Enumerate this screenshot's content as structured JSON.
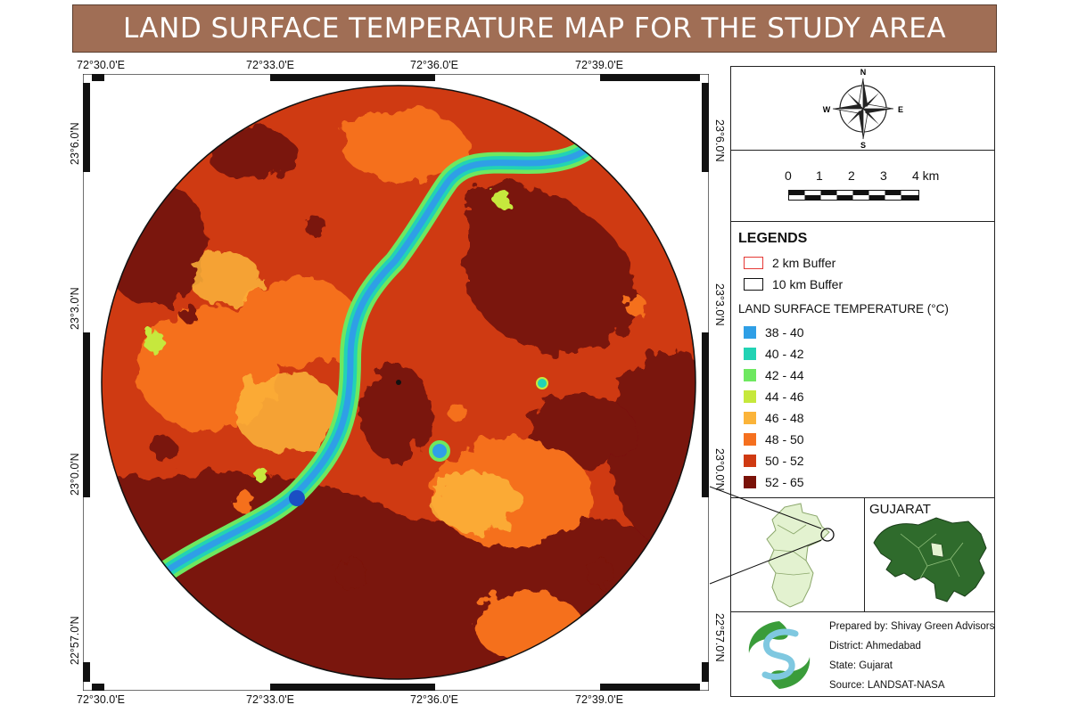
{
  "title": "LAND SURFACE TEMPERATURE MAP FOR THE STUDY AREA",
  "grid": {
    "top_labels": [
      "72°30.0'E",
      "72°33.0'E",
      "72°36.0'E",
      "72°39.0'E"
    ],
    "bottom_labels": [
      "72°30.0'E",
      "72°33.0'E",
      "72°36.0'E",
      "72°39.0'E"
    ],
    "left_labels": [
      "23°6.0'N",
      "23°3.0'N",
      "23°0.0'N",
      "22°57.0'N"
    ],
    "right_labels": [
      "23°6.0'N",
      "23°3.0'N",
      "23°0.0'N",
      "22°57.0'N"
    ]
  },
  "north_arrow": {
    "n": "N",
    "s": "S",
    "e": "E",
    "w": "W"
  },
  "scalebar": {
    "labels": [
      "0",
      "1",
      "2",
      "3",
      "4 km"
    ]
  },
  "legend": {
    "heading": "LEGENDS",
    "buffers": [
      {
        "label": "2 km Buffer",
        "color": "#e53935"
      },
      {
        "label": "10 km Buffer",
        "color": "#111111"
      }
    ],
    "lst_heading": "LAND SURFACE TEMPERATURE (°C)",
    "classes": [
      {
        "label": "38 - 40",
        "color": "#2f9fe6"
      },
      {
        "label": "40 - 42",
        "color": "#22d3b4"
      },
      {
        "label": "42 - 44",
        "color": "#6ee860"
      },
      {
        "label": "44 - 46",
        "color": "#c6e83c"
      },
      {
        "label": "46 - 48",
        "color": "#fbb43a"
      },
      {
        "label": "48 - 50",
        "color": "#f5701f"
      },
      {
        "label": "50 - 52",
        "color": "#cf3a12"
      },
      {
        "label": "52 - 65",
        "color": "#7a1208"
      }
    ]
  },
  "inset": {
    "state_label": "GUJARAT"
  },
  "credits": {
    "prepared_by": "Prepared by: Shivay Green Advisors",
    "district": "District: Ahmedabad",
    "state": "State: Gujarat",
    "source": "Source: LANDSAT-NASA"
  },
  "colors": {
    "title_bar": "#a06e55",
    "gujarat_green": "#2f6b2c",
    "district_light": "#e3f2d0"
  }
}
